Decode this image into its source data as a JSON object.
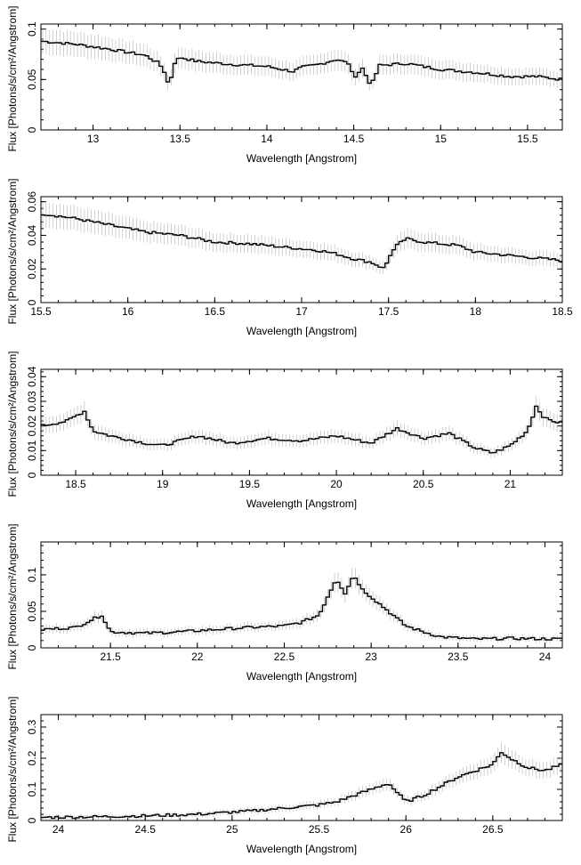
{
  "chart_data": [
    {
      "type": "line",
      "xlabel": "Wavelength [Angstrom]",
      "ylabel": "Flux [Photons/s/cm²/Angstrom]",
      "xlim": [
        12.7,
        15.7
      ],
      "ylim": [
        0,
        0.105
      ],
      "xticks": [
        13,
        13.5,
        14,
        14.5,
        15,
        15.5
      ],
      "xtick_labels": [
        "13",
        "13.5",
        "14",
        "14.5",
        "15",
        "15.5"
      ],
      "yticks": [
        0,
        0.05,
        0.1
      ],
      "ytick_labels": [
        "0",
        "0.05",
        "0.1"
      ],
      "grid": false,
      "series": [
        {
          "x": [
            12.7,
            12.9,
            13.1,
            13.3,
            13.38,
            13.42,
            13.44,
            13.46,
            13.5,
            13.6,
            13.8,
            14.0,
            14.15,
            14.2,
            14.3,
            14.4,
            14.47,
            14.5,
            14.55,
            14.6,
            14.62,
            14.65,
            14.8,
            15.0,
            15.2,
            15.4,
            15.55,
            15.7
          ],
          "y": [
            0.088,
            0.085,
            0.08,
            0.074,
            0.066,
            0.055,
            0.04,
            0.065,
            0.072,
            0.068,
            0.065,
            0.063,
            0.058,
            0.062,
            0.065,
            0.07,
            0.066,
            0.052,
            0.061,
            0.044,
            0.052,
            0.064,
            0.066,
            0.06,
            0.057,
            0.053,
            0.053,
            0.05
          ]
        }
      ]
    },
    {
      "type": "line",
      "xlabel": "Wavelength [Angstrom]",
      "ylabel": "Flux [Photons/s/cm²/Angstrom]",
      "xlim": [
        15.5,
        18.5
      ],
      "ylim": [
        0,
        0.063
      ],
      "xticks": [
        15.5,
        16,
        16.5,
        17,
        17.5,
        18,
        18.5
      ],
      "xtick_labels": [
        "15.5",
        "16",
        "16.5",
        "17",
        "17.5",
        "18",
        "18.5"
      ],
      "yticks": [
        0,
        0.02,
        0.04,
        0.06
      ],
      "ytick_labels": [
        "0",
        "0.02",
        "0.04",
        "0.06"
      ],
      "grid": false,
      "series": [
        {
          "x": [
            15.5,
            15.7,
            15.9,
            16.0,
            16.1,
            16.3,
            16.5,
            16.7,
            16.9,
            17.1,
            17.2,
            17.3,
            17.4,
            17.48,
            17.5,
            17.55,
            17.6,
            17.7,
            17.8,
            17.9,
            18.0,
            18.1,
            18.3,
            18.5
          ],
          "y": [
            0.053,
            0.05,
            0.046,
            0.044,
            0.042,
            0.04,
            0.036,
            0.035,
            0.033,
            0.031,
            0.029,
            0.026,
            0.024,
            0.02,
            0.027,
            0.034,
            0.038,
            0.036,
            0.035,
            0.034,
            0.03,
            0.029,
            0.027,
            0.025
          ]
        }
      ]
    },
    {
      "type": "line",
      "xlabel": "Wavelength [Angstrom]",
      "ylabel": "Flux [Photons/s/cm²/Angstrom]",
      "xlim": [
        18.3,
        21.3
      ],
      "ylim": [
        0,
        0.043
      ],
      "xticks": [
        18.5,
        19,
        19.5,
        20,
        20.5,
        21
      ],
      "xtick_labels": [
        "18.5",
        "19",
        "19.5",
        "20",
        "20.5",
        "21"
      ],
      "yticks": [
        0,
        0.01,
        0.02,
        0.03,
        0.04
      ],
      "ytick_labels": [
        "0",
        "0.01",
        "0.02",
        "0.03",
        "0.04"
      ],
      "grid": false,
      "series": [
        {
          "x": [
            18.3,
            18.45,
            18.55,
            18.6,
            18.7,
            18.9,
            19.0,
            19.2,
            19.4,
            19.6,
            19.8,
            20.0,
            20.2,
            20.35,
            20.5,
            20.65,
            20.8,
            20.9,
            21.0,
            21.1,
            21.15,
            21.2,
            21.3
          ],
          "y": [
            0.02,
            0.022,
            0.026,
            0.018,
            0.016,
            0.013,
            0.012,
            0.016,
            0.013,
            0.015,
            0.014,
            0.016,
            0.013,
            0.019,
            0.015,
            0.017,
            0.011,
            0.009,
            0.012,
            0.018,
            0.028,
            0.023,
            0.021
          ]
        }
      ]
    },
    {
      "type": "line",
      "xlabel": "Wavelength [Angstrom]",
      "ylabel": "Flux [Photons/s/cm²/Angstrom]",
      "xlim": [
        21.1,
        24.1
      ],
      "ylim": [
        0,
        0.145
      ],
      "xticks": [
        21.5,
        22,
        22.5,
        23,
        23.5,
        24
      ],
      "xtick_labels": [
        "21.5",
        "22",
        "22.5",
        "23",
        "23.5",
        "24"
      ],
      "yticks": [
        0,
        0.05,
        0.1
      ],
      "ytick_labels": [
        "0",
        "0.05",
        "0.1"
      ],
      "grid": false,
      "series": [
        {
          "x": [
            21.1,
            21.3,
            21.45,
            21.5,
            21.7,
            21.9,
            22.1,
            22.3,
            22.5,
            22.6,
            22.7,
            22.75,
            22.8,
            22.85,
            22.9,
            22.95,
            23.0,
            23.1,
            23.2,
            23.3,
            23.4,
            23.6,
            23.8,
            24.1
          ],
          "y": [
            0.025,
            0.028,
            0.045,
            0.022,
            0.02,
            0.022,
            0.025,
            0.028,
            0.03,
            0.035,
            0.045,
            0.07,
            0.095,
            0.075,
            0.1,
            0.08,
            0.07,
            0.05,
            0.03,
            0.022,
            0.015,
            0.012,
            0.013,
            0.012
          ]
        }
      ]
    },
    {
      "type": "line",
      "xlabel": "Wavelength [Angstrom]",
      "ylabel": "Flux [Photons/s/cm²/Angstrom]",
      "xlim": [
        23.9,
        26.9
      ],
      "ylim": [
        0,
        0.34
      ],
      "xticks": [
        24,
        24.5,
        25,
        25.5,
        26,
        26.5
      ],
      "xtick_labels": [
        "24",
        "24.5",
        "25",
        "25.5",
        "26",
        "26.5"
      ],
      "yticks": [
        0,
        0.1,
        0.2,
        0.3
      ],
      "ytick_labels": [
        "0",
        "0.1",
        "0.2",
        "0.3"
      ],
      "grid": false,
      "series": [
        {
          "x": [
            23.9,
            24.2,
            24.5,
            24.8,
            25.1,
            25.3,
            25.5,
            25.6,
            25.7,
            25.8,
            25.9,
            26.0,
            26.1,
            26.2,
            26.3,
            26.4,
            26.5,
            26.55,
            26.6,
            26.7,
            26.8,
            26.9
          ],
          "y": [
            0.01,
            0.012,
            0.015,
            0.02,
            0.03,
            0.04,
            0.05,
            0.06,
            0.08,
            0.1,
            0.12,
            0.06,
            0.08,
            0.11,
            0.14,
            0.16,
            0.18,
            0.22,
            0.2,
            0.17,
            0.16,
            0.18
          ]
        }
      ]
    }
  ]
}
